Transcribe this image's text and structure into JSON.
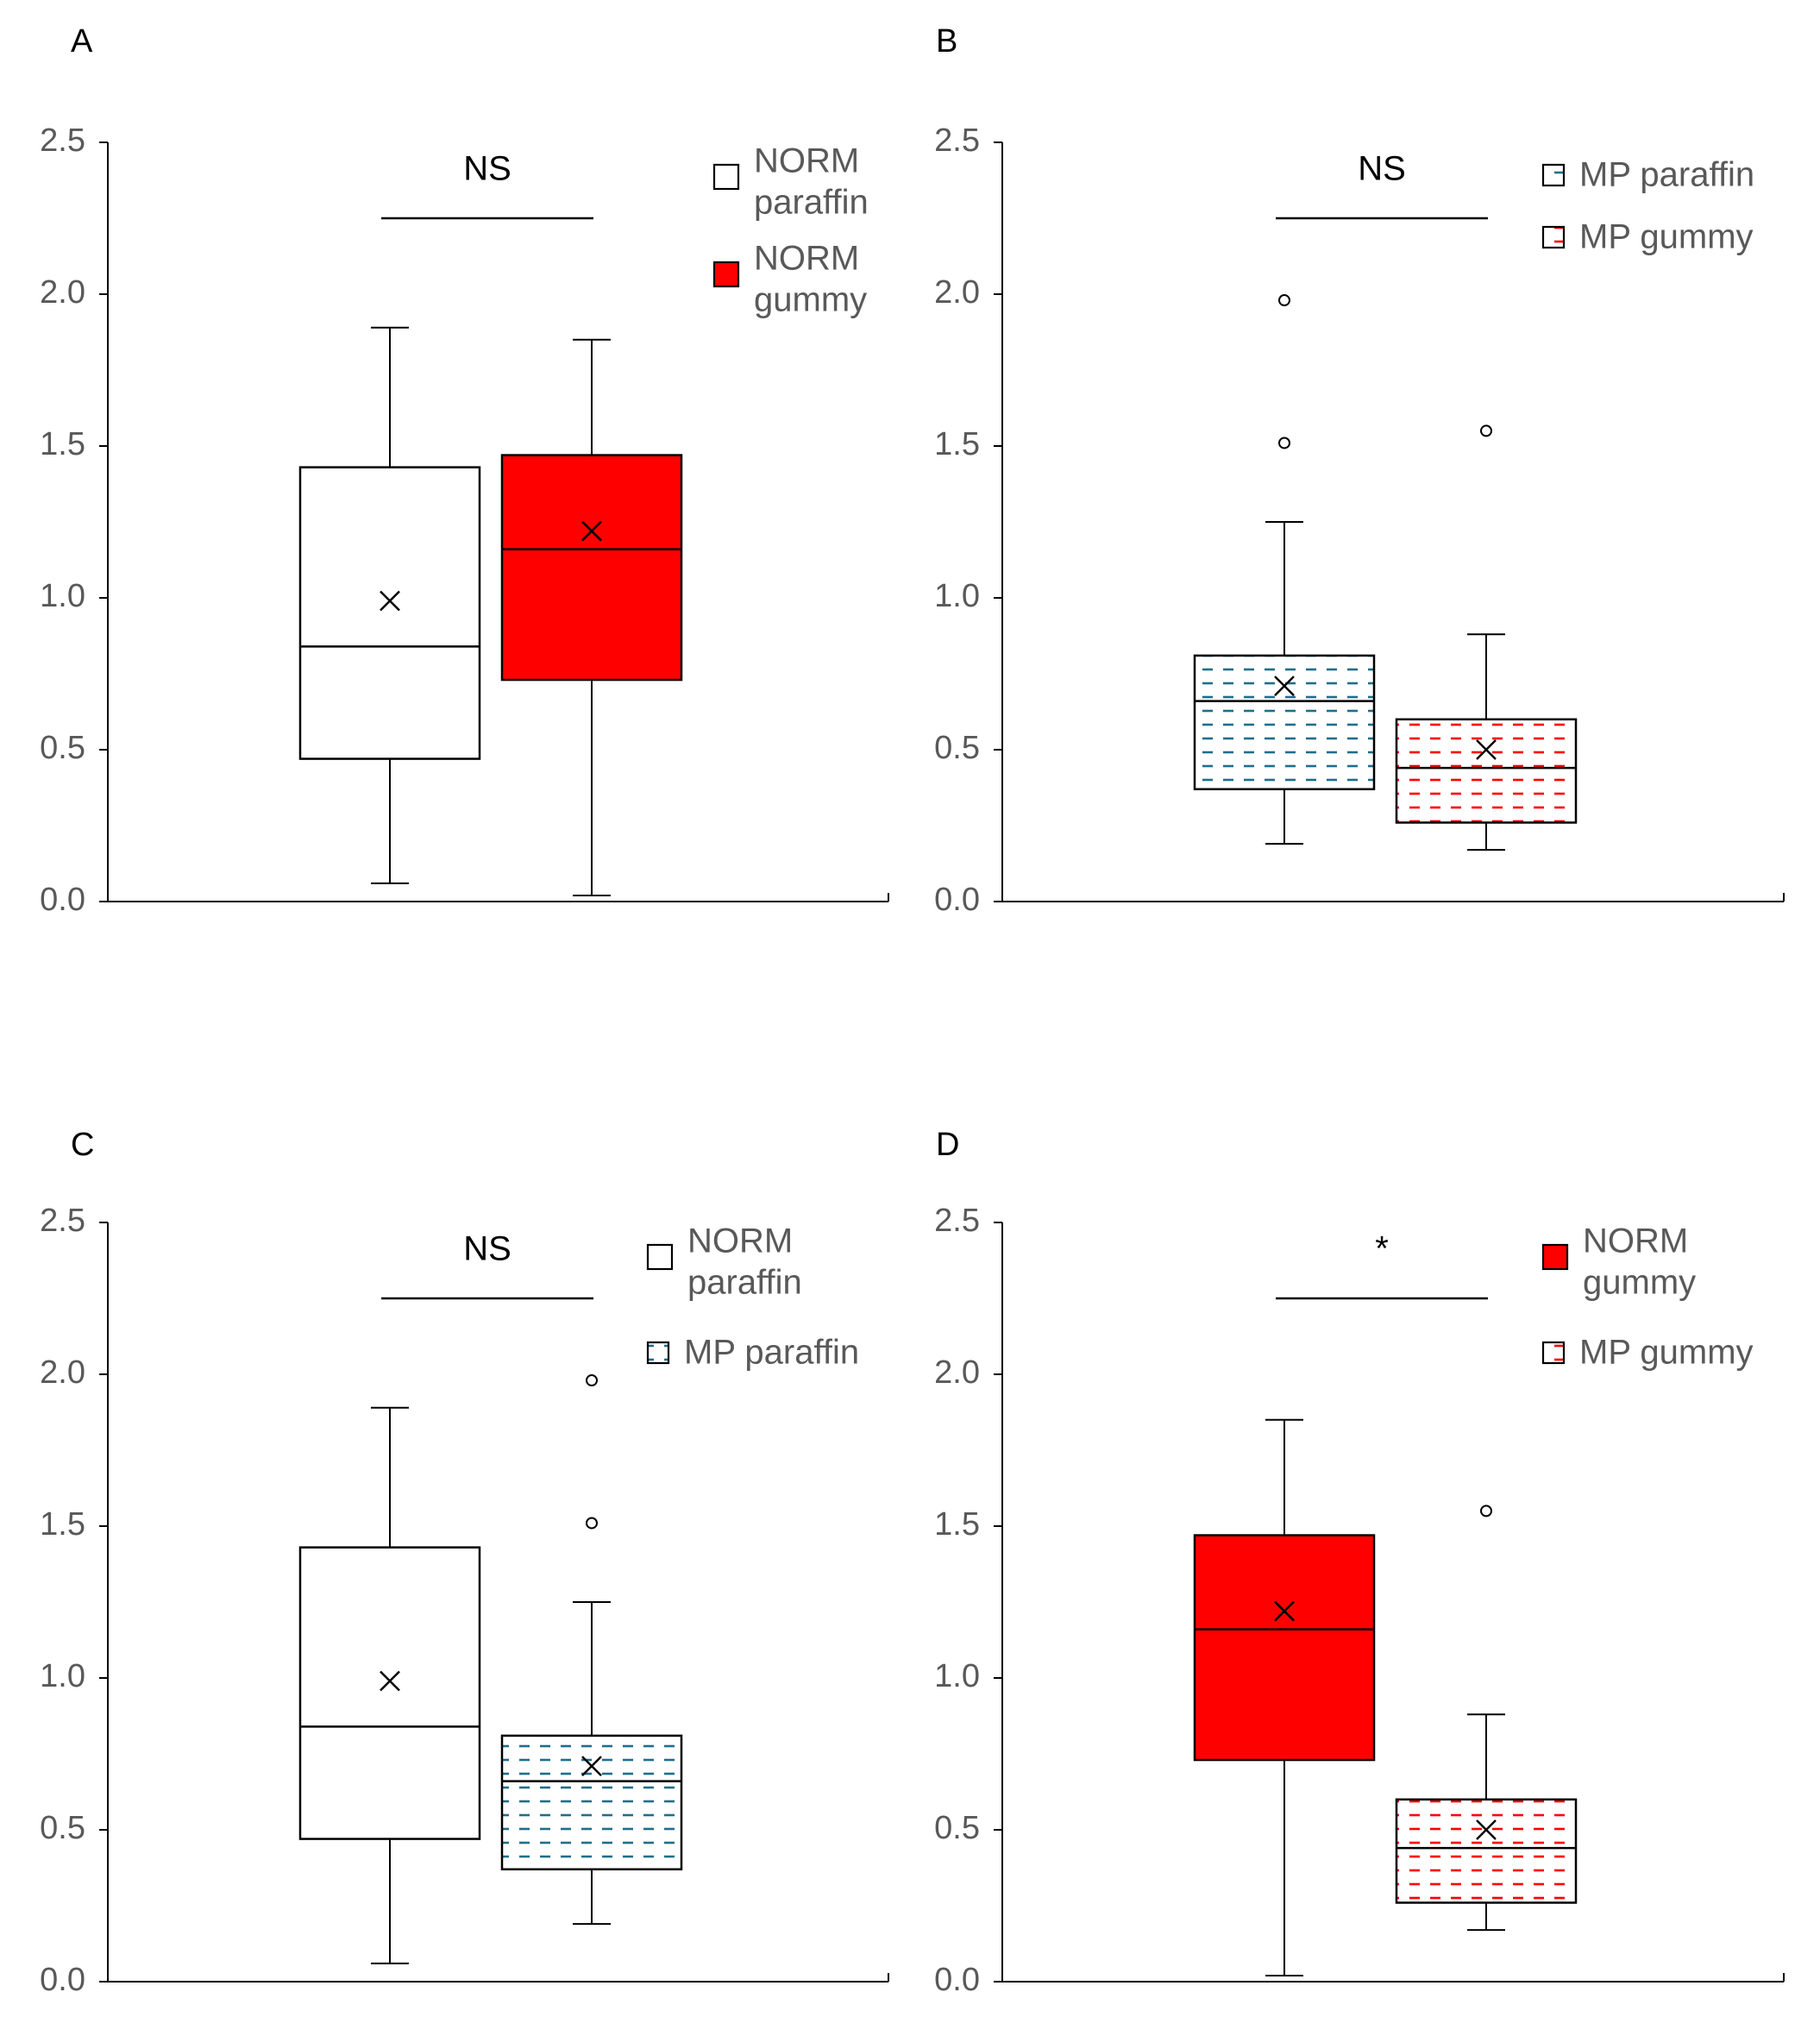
{
  "colors": {
    "axis": "#000000",
    "tick_text": "#595959",
    "norm_paraffin_fill": "#ffffff",
    "norm_gummy_fill": "#ff0000",
    "mp_paraffin_hatch": "#1f6e8c",
    "mp_gummy_hatch": "#ff0000"
  },
  "chart_data": [
    {
      "panel": "A",
      "type": "box",
      "ylim": [
        0,
        2.5
      ],
      "yticks": [
        "0.0",
        "0.5",
        "1.0",
        "1.5",
        "2.0",
        "2.5"
      ],
      "significance": "NS",
      "legend": [
        {
          "lines": [
            "NORM",
            "paraffin"
          ],
          "style": "norm_paraffin"
        },
        {
          "lines": [
            "NORM",
            "gummy"
          ],
          "style": "norm_gummy"
        }
      ],
      "series": [
        {
          "style": "norm_paraffin",
          "min": 0.06,
          "q1": 0.47,
          "median": 0.84,
          "mean": 0.99,
          "q3": 1.43,
          "max": 1.89,
          "outliers": []
        },
        {
          "style": "norm_gummy",
          "min": 0.02,
          "q1": 0.73,
          "median": 1.16,
          "mean": 1.22,
          "q3": 1.47,
          "max": 1.85,
          "outliers": []
        }
      ]
    },
    {
      "panel": "B",
      "type": "box",
      "ylim": [
        0,
        2.5
      ],
      "yticks": [
        "0.0",
        "0.5",
        "1.0",
        "1.5",
        "2.0",
        "2.5"
      ],
      "significance": "NS",
      "legend": [
        {
          "lines": [
            "MP paraffin"
          ],
          "style": "mp_paraffin"
        },
        {
          "lines": [
            "MP gummy"
          ],
          "style": "mp_gummy"
        }
      ],
      "series": [
        {
          "style": "mp_paraffin",
          "min": 0.19,
          "q1": 0.37,
          "median": 0.66,
          "mean": 0.71,
          "q3": 0.81,
          "max": 1.25,
          "outliers": [
            1.51,
            1.98
          ]
        },
        {
          "style": "mp_gummy",
          "min": 0.17,
          "q1": 0.26,
          "median": 0.44,
          "mean": 0.5,
          "q3": 0.6,
          "max": 0.88,
          "outliers": [
            1.55
          ]
        }
      ]
    },
    {
      "panel": "C",
      "type": "box",
      "ylim": [
        0,
        2.5
      ],
      "yticks": [
        "0.0",
        "0.5",
        "1.0",
        "1.5",
        "2.0",
        "2.5"
      ],
      "significance": "NS",
      "legend": [
        {
          "lines": [
            "NORM",
            "paraffin"
          ],
          "style": "norm_paraffin"
        },
        {
          "lines": [
            "MP paraffin"
          ],
          "style": "mp_paraffin"
        }
      ],
      "series": [
        {
          "style": "norm_paraffin",
          "min": 0.06,
          "q1": 0.47,
          "median": 0.84,
          "mean": 0.99,
          "q3": 1.43,
          "max": 1.89,
          "outliers": []
        },
        {
          "style": "mp_paraffin",
          "min": 0.19,
          "q1": 0.37,
          "median": 0.66,
          "mean": 0.71,
          "q3": 0.81,
          "max": 1.25,
          "outliers": [
            1.51,
            1.98
          ]
        }
      ]
    },
    {
      "panel": "D",
      "type": "box",
      "ylim": [
        0,
        2.5
      ],
      "yticks": [
        "0.0",
        "0.5",
        "1.0",
        "1.5",
        "2.0",
        "2.5"
      ],
      "significance": "*",
      "legend": [
        {
          "lines": [
            "NORM",
            "gummy"
          ],
          "style": "norm_gummy"
        },
        {
          "lines": [
            "MP gummy"
          ],
          "style": "mp_gummy"
        }
      ],
      "series": [
        {
          "style": "norm_gummy",
          "min": 0.02,
          "q1": 0.73,
          "median": 1.16,
          "mean": 1.22,
          "q3": 1.47,
          "max": 1.85,
          "outliers": []
        },
        {
          "style": "mp_gummy",
          "min": 0.17,
          "q1": 0.26,
          "median": 0.44,
          "mean": 0.5,
          "q3": 0.6,
          "max": 0.88,
          "outliers": [
            1.55
          ]
        }
      ]
    }
  ]
}
